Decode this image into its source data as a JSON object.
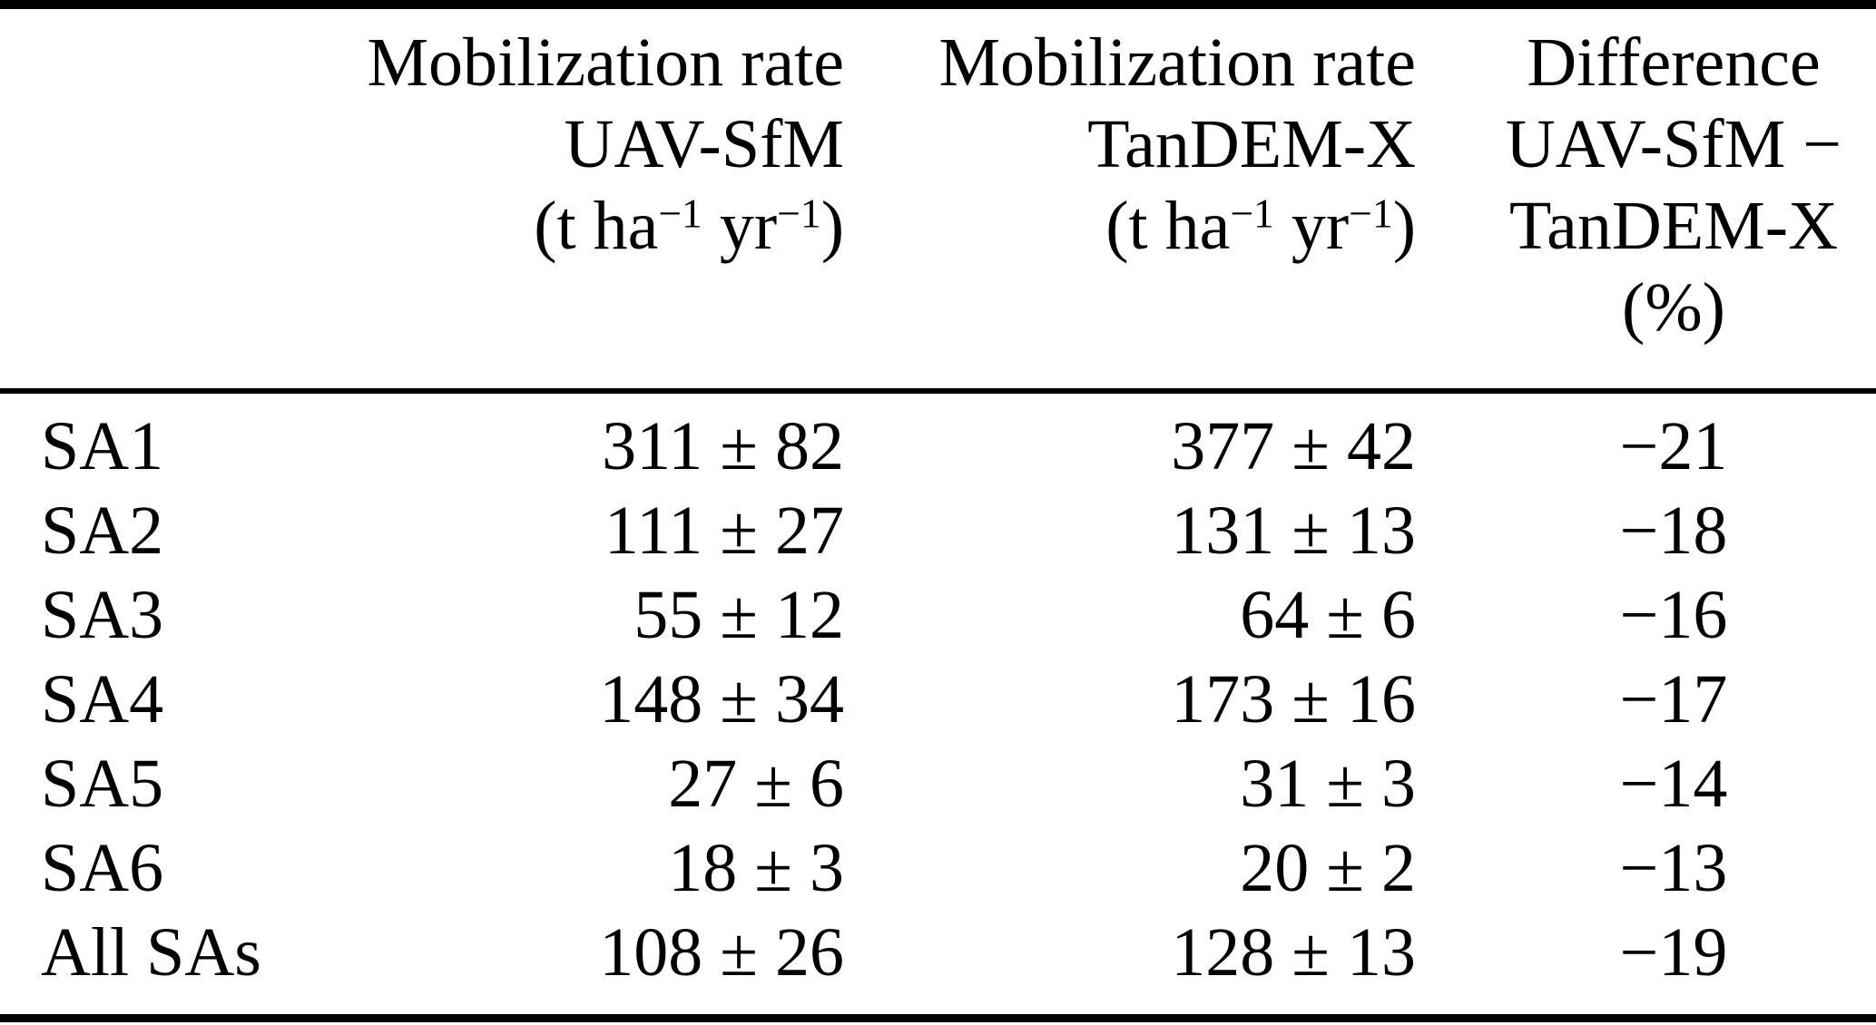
{
  "table": {
    "colors": {
      "text": "#000000",
      "background": "#ffffff",
      "rule": "#000000"
    },
    "columns": {
      "area": {
        "header": ""
      },
      "uav": {
        "line1": "Mobilization rate",
        "line2": "UAV-SfM",
        "unit_open": "(t ha",
        "unit_sup1": "−1",
        "unit_mid": " yr",
        "unit_sup2": "−1",
        "unit_close": ")"
      },
      "tandem": {
        "line1": "Mobilization rate",
        "line2": "TanDEM-X",
        "unit_open": "(t ha",
        "unit_sup1": "−1",
        "unit_mid": " yr",
        "unit_sup2": "−1",
        "unit_close": ")"
      },
      "diff": {
        "line1": "Difference",
        "line2": "UAV-SfM −",
        "line3": "TanDEM-X",
        "line4": "(%)"
      }
    },
    "rows": [
      {
        "label": "SA1",
        "uav": "311 ± 82",
        "tandem": "377 ± 42",
        "diff": "−21"
      },
      {
        "label": "SA2",
        "uav": "111 ± 27",
        "tandem": "131 ± 13",
        "diff": "−18"
      },
      {
        "label": "SA3",
        "uav": "55 ± 12",
        "tandem": "64 ± 6",
        "diff": "−16"
      },
      {
        "label": "SA4",
        "uav": "148 ± 34",
        "tandem": "173 ± 16",
        "diff": "−17"
      },
      {
        "label": "SA5",
        "uav": "27 ± 6",
        "tandem": "31 ± 3",
        "diff": "−14"
      },
      {
        "label": "SA6",
        "uav": "18 ± 3",
        "tandem": "20 ± 2",
        "diff": "−13"
      },
      {
        "label": "All SAs",
        "uav": "108 ± 26",
        "tandem": "128 ± 13",
        "diff": "−19"
      }
    ]
  }
}
